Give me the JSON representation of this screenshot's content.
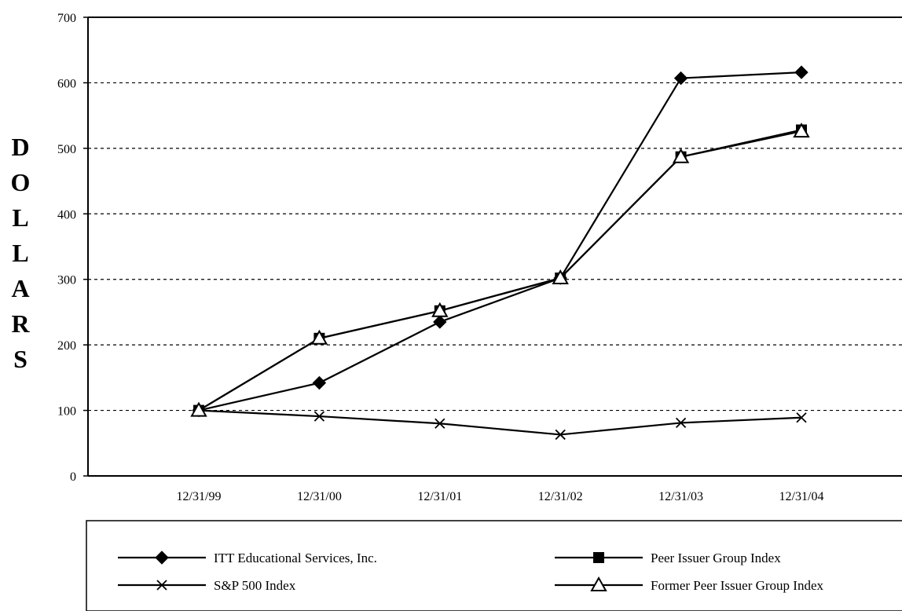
{
  "chart_data": {
    "type": "line",
    "title": "",
    "xlabel": "",
    "ylabel": "DOLLARS",
    "categories": [
      "12/31/99",
      "12/31/00",
      "12/31/01",
      "12/31/02",
      "12/31/03",
      "12/31/04"
    ],
    "ylim": [
      0,
      700
    ],
    "yticks": [
      "0",
      "100",
      "200",
      "300",
      "400",
      "500",
      "600",
      "700"
    ],
    "grid": "horizontal dashed",
    "legend_position": "bottom",
    "series": [
      {
        "name": "ITT Educational Services, Inc.",
        "marker": "diamond",
        "values": [
          100,
          142,
          235,
          302,
          607,
          616
        ]
      },
      {
        "name": "Peer Issuer Group Index",
        "marker": "square",
        "values": [
          100,
          210,
          252,
          302,
          487,
          528
        ]
      },
      {
        "name": "S&P 500 Index",
        "marker": "x",
        "values": [
          100,
          91,
          80,
          63,
          81,
          89
        ]
      },
      {
        "name": "Former Peer Issuer Group Index",
        "marker": "triangle",
        "values": [
          100,
          210,
          252,
          302,
          487,
          526
        ]
      }
    ]
  }
}
